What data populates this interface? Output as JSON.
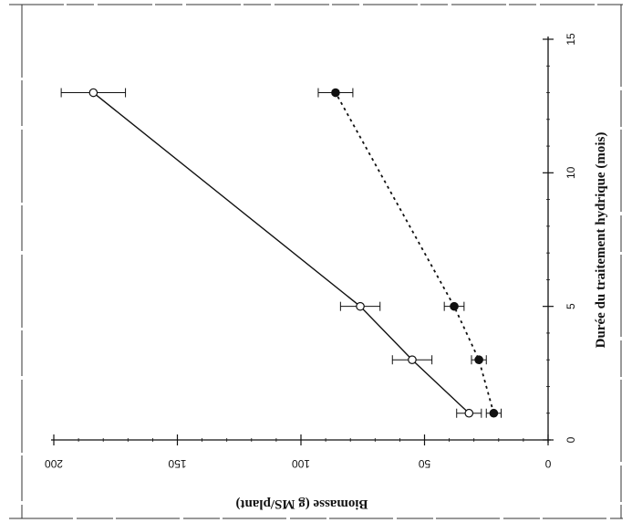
{
  "chart_data": {
    "type": "line",
    "orientation": "rotated-90-clockwise",
    "xlabel": "Durée du traitement hydrique (mois)",
    "ylabel": "Biomasse (g MS/plant)",
    "xlim": [
      0,
      15
    ],
    "ylim": [
      0,
      200
    ],
    "x_ticks": [
      0,
      5,
      10,
      15
    ],
    "y_ticks": [
      0,
      50,
      100,
      150,
      200
    ],
    "grid": false,
    "legend": "none",
    "series": [
      {
        "style": "solid line, open circles",
        "color": "#111111",
        "x": [
          1,
          3,
          5,
          13
        ],
        "y": [
          32,
          55,
          76,
          184
        ],
        "error": [
          5,
          8,
          8,
          13
        ]
      },
      {
        "style": "dotted line, filled circles",
        "color": "#111111",
        "x": [
          1,
          3,
          5,
          13
        ],
        "y": [
          22,
          28,
          38,
          86
        ],
        "error": [
          3,
          3,
          4,
          7
        ]
      }
    ]
  }
}
